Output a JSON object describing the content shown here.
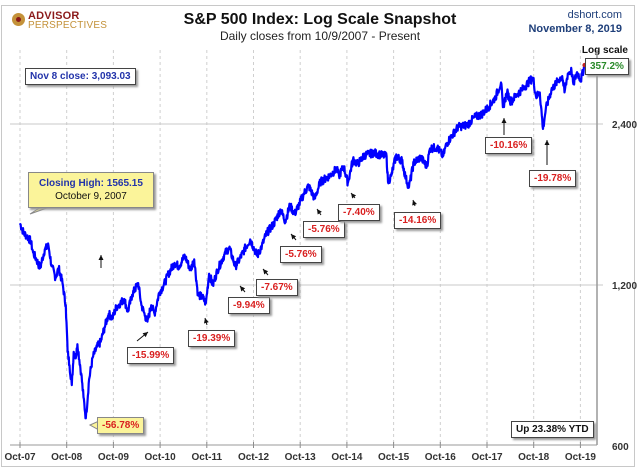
{
  "header": {
    "logo_line1": "ADVISOR",
    "logo_line2": "PERSPECTIVES",
    "source": "dshort.com",
    "date": "November 8, 2019"
  },
  "chart_data": {
    "type": "line",
    "title": "S&P 500 Index: Log Scale Snapshot",
    "subtitle": "Daily closes from 10/9/2007 - Present",
    "yscale": "log",
    "ylabel": "Log scale",
    "ylim": [
      600,
      3200
    ],
    "yticks": [
      600,
      1200,
      2400
    ],
    "ytick_labels": [
      "600",
      "1,200",
      "2,400"
    ],
    "xlabel": "",
    "xtick_labels": [
      "Oct-07",
      "Oct-08",
      "Oct-09",
      "Oct-10",
      "Oct-11",
      "Oct-12",
      "Oct-13",
      "Oct-14",
      "Oct-15",
      "Oct-16",
      "Oct-17",
      "Oct-18",
      "Oct-19"
    ],
    "xlim_years": [
      2007.77,
      2019.86
    ],
    "grid": "vertical-dashed",
    "series": [
      {
        "name": "S&P 500 daily close",
        "color": "#0000ff",
        "points": [
          [
            2007.77,
            1565
          ],
          [
            2007.85,
            1500
          ],
          [
            2007.92,
            1480
          ],
          [
            2008.0,
            1450
          ],
          [
            2008.05,
            1380
          ],
          [
            2008.12,
            1340
          ],
          [
            2008.2,
            1290
          ],
          [
            2008.3,
            1400
          ],
          [
            2008.38,
            1420
          ],
          [
            2008.45,
            1300
          ],
          [
            2008.53,
            1240
          ],
          [
            2008.6,
            1290
          ],
          [
            2008.68,
            1210
          ],
          [
            2008.75,
            1100
          ],
          [
            2008.79,
            900
          ],
          [
            2008.83,
            850
          ],
          [
            2008.88,
            780
          ],
          [
            2008.92,
            900
          ],
          [
            2008.97,
            880
          ],
          [
            2009.0,
            930
          ],
          [
            2009.08,
            820
          ],
          [
            2009.13,
            740
          ],
          [
            2009.18,
            676
          ],
          [
            2009.25,
            800
          ],
          [
            2009.33,
            880
          ],
          [
            2009.42,
            920
          ],
          [
            2009.5,
            940
          ],
          [
            2009.58,
            1000
          ],
          [
            2009.67,
            1060
          ],
          [
            2009.75,
            1040
          ],
          [
            2009.83,
            1090
          ],
          [
            2009.92,
            1110
          ],
          [
            2010.0,
            1130
          ],
          [
            2010.08,
            1070
          ],
          [
            2010.17,
            1150
          ],
          [
            2010.3,
            1210
          ],
          [
            2010.37,
            1100
          ],
          [
            2010.45,
            1050
          ],
          [
            2010.5,
            1025
          ],
          [
            2010.58,
            1100
          ],
          [
            2010.65,
            1060
          ],
          [
            2010.75,
            1160
          ],
          [
            2010.85,
            1200
          ],
          [
            2010.95,
            1260
          ],
          [
            2011.08,
            1320
          ],
          [
            2011.17,
            1300
          ],
          [
            2011.3,
            1360
          ],
          [
            2011.42,
            1280
          ],
          [
            2011.5,
            1340
          ],
          [
            2011.58,
            1150
          ],
          [
            2011.67,
            1140
          ],
          [
            2011.75,
            1110
          ],
          [
            2011.82,
            1260
          ],
          [
            2011.9,
            1200
          ],
          [
            2012.0,
            1280
          ],
          [
            2012.15,
            1370
          ],
          [
            2012.25,
            1410
          ],
          [
            2012.38,
            1300
          ],
          [
            2012.45,
            1330
          ],
          [
            2012.58,
            1400
          ],
          [
            2012.7,
            1460
          ],
          [
            2012.85,
            1360
          ],
          [
            2012.95,
            1420
          ],
          [
            2013.05,
            1500
          ],
          [
            2013.2,
            1560
          ],
          [
            2013.35,
            1660
          ],
          [
            2013.45,
            1580
          ],
          [
            2013.55,
            1690
          ],
          [
            2013.65,
            1630
          ],
          [
            2013.75,
            1700
          ],
          [
            2013.85,
            1780
          ],
          [
            2013.95,
            1840
          ],
          [
            2014.08,
            1740
          ],
          [
            2014.2,
            1870
          ],
          [
            2014.4,
            1920
          ],
          [
            2014.55,
            1980
          ],
          [
            2014.6,
            1920
          ],
          [
            2014.7,
            2000
          ],
          [
            2014.79,
            1862
          ],
          [
            2014.9,
            2060
          ],
          [
            2015.0,
            2020
          ],
          [
            2015.15,
            2100
          ],
          [
            2015.35,
            2120
          ],
          [
            2015.5,
            2100
          ],
          [
            2015.62,
            2090
          ],
          [
            2015.65,
            1870
          ],
          [
            2015.72,
            1920
          ],
          [
            2015.82,
            2090
          ],
          [
            2015.95,
            2050
          ],
          [
            2016.03,
            1900
          ],
          [
            2016.1,
            1829
          ],
          [
            2016.2,
            2030
          ],
          [
            2016.35,
            2080
          ],
          [
            2016.48,
            2000
          ],
          [
            2016.55,
            2160
          ],
          [
            2016.7,
            2170
          ],
          [
            2016.83,
            2090
          ],
          [
            2016.9,
            2200
          ],
          [
            2017.0,
            2270
          ],
          [
            2017.15,
            2370
          ],
          [
            2017.35,
            2390
          ],
          [
            2017.5,
            2470
          ],
          [
            2017.65,
            2500
          ],
          [
            2017.8,
            2580
          ],
          [
            2017.95,
            2690
          ],
          [
            2018.07,
            2870
          ],
          [
            2018.11,
            2580
          ],
          [
            2018.2,
            2750
          ],
          [
            2018.28,
            2640
          ],
          [
            2018.4,
            2720
          ],
          [
            2018.55,
            2800
          ],
          [
            2018.7,
            2900
          ],
          [
            2018.76,
            2920
          ],
          [
            2018.82,
            2700
          ],
          [
            2018.9,
            2750
          ],
          [
            2018.97,
            2350
          ],
          [
            2019.03,
            2560
          ],
          [
            2019.15,
            2780
          ],
          [
            2019.3,
            2900
          ],
          [
            2019.38,
            2950
          ],
          [
            2019.43,
            2750
          ],
          [
            2019.5,
            2980
          ],
          [
            2019.58,
            3020
          ],
          [
            2019.62,
            2850
          ],
          [
            2019.7,
            3000
          ],
          [
            2019.78,
            2900
          ],
          [
            2019.86,
            3093
          ]
        ]
      }
    ],
    "annotations": [
      {
        "text": "Nov 8 close: 3,093.03",
        "style": "info"
      },
      {
        "text": "357.2%",
        "style": "gain"
      },
      {
        "text": "Closing High: 1565.15",
        "text2": "October 9, 2007",
        "style": "callout"
      },
      {
        "text": "-56.78%",
        "style": "callout-loss",
        "year": 2009.18
      },
      {
        "text": "-15.99%",
        "style": "loss",
        "year": 2010.5
      },
      {
        "text": "-19.39%",
        "style": "loss",
        "year": 2011.75
      },
      {
        "text": "-9.94%",
        "style": "loss",
        "year": 2012.38
      },
      {
        "text": "-7.67%",
        "style": "loss",
        "year": 2012.85
      },
      {
        "text": "-5.76%",
        "style": "loss",
        "year": 2013.45
      },
      {
        "text": "-5.76%",
        "style": "loss",
        "year": 2014.08
      },
      {
        "text": "-7.40%",
        "style": "loss",
        "year": 2014.79
      },
      {
        "text": "-14.16%",
        "style": "loss",
        "year": 2016.1
      },
      {
        "text": "-10.16%",
        "style": "loss",
        "year": 2018.11
      },
      {
        "text": "-19.78%",
        "style": "loss",
        "year": 2018.97
      },
      {
        "text": "Up 23.38% YTD",
        "style": "info-dark"
      }
    ]
  }
}
